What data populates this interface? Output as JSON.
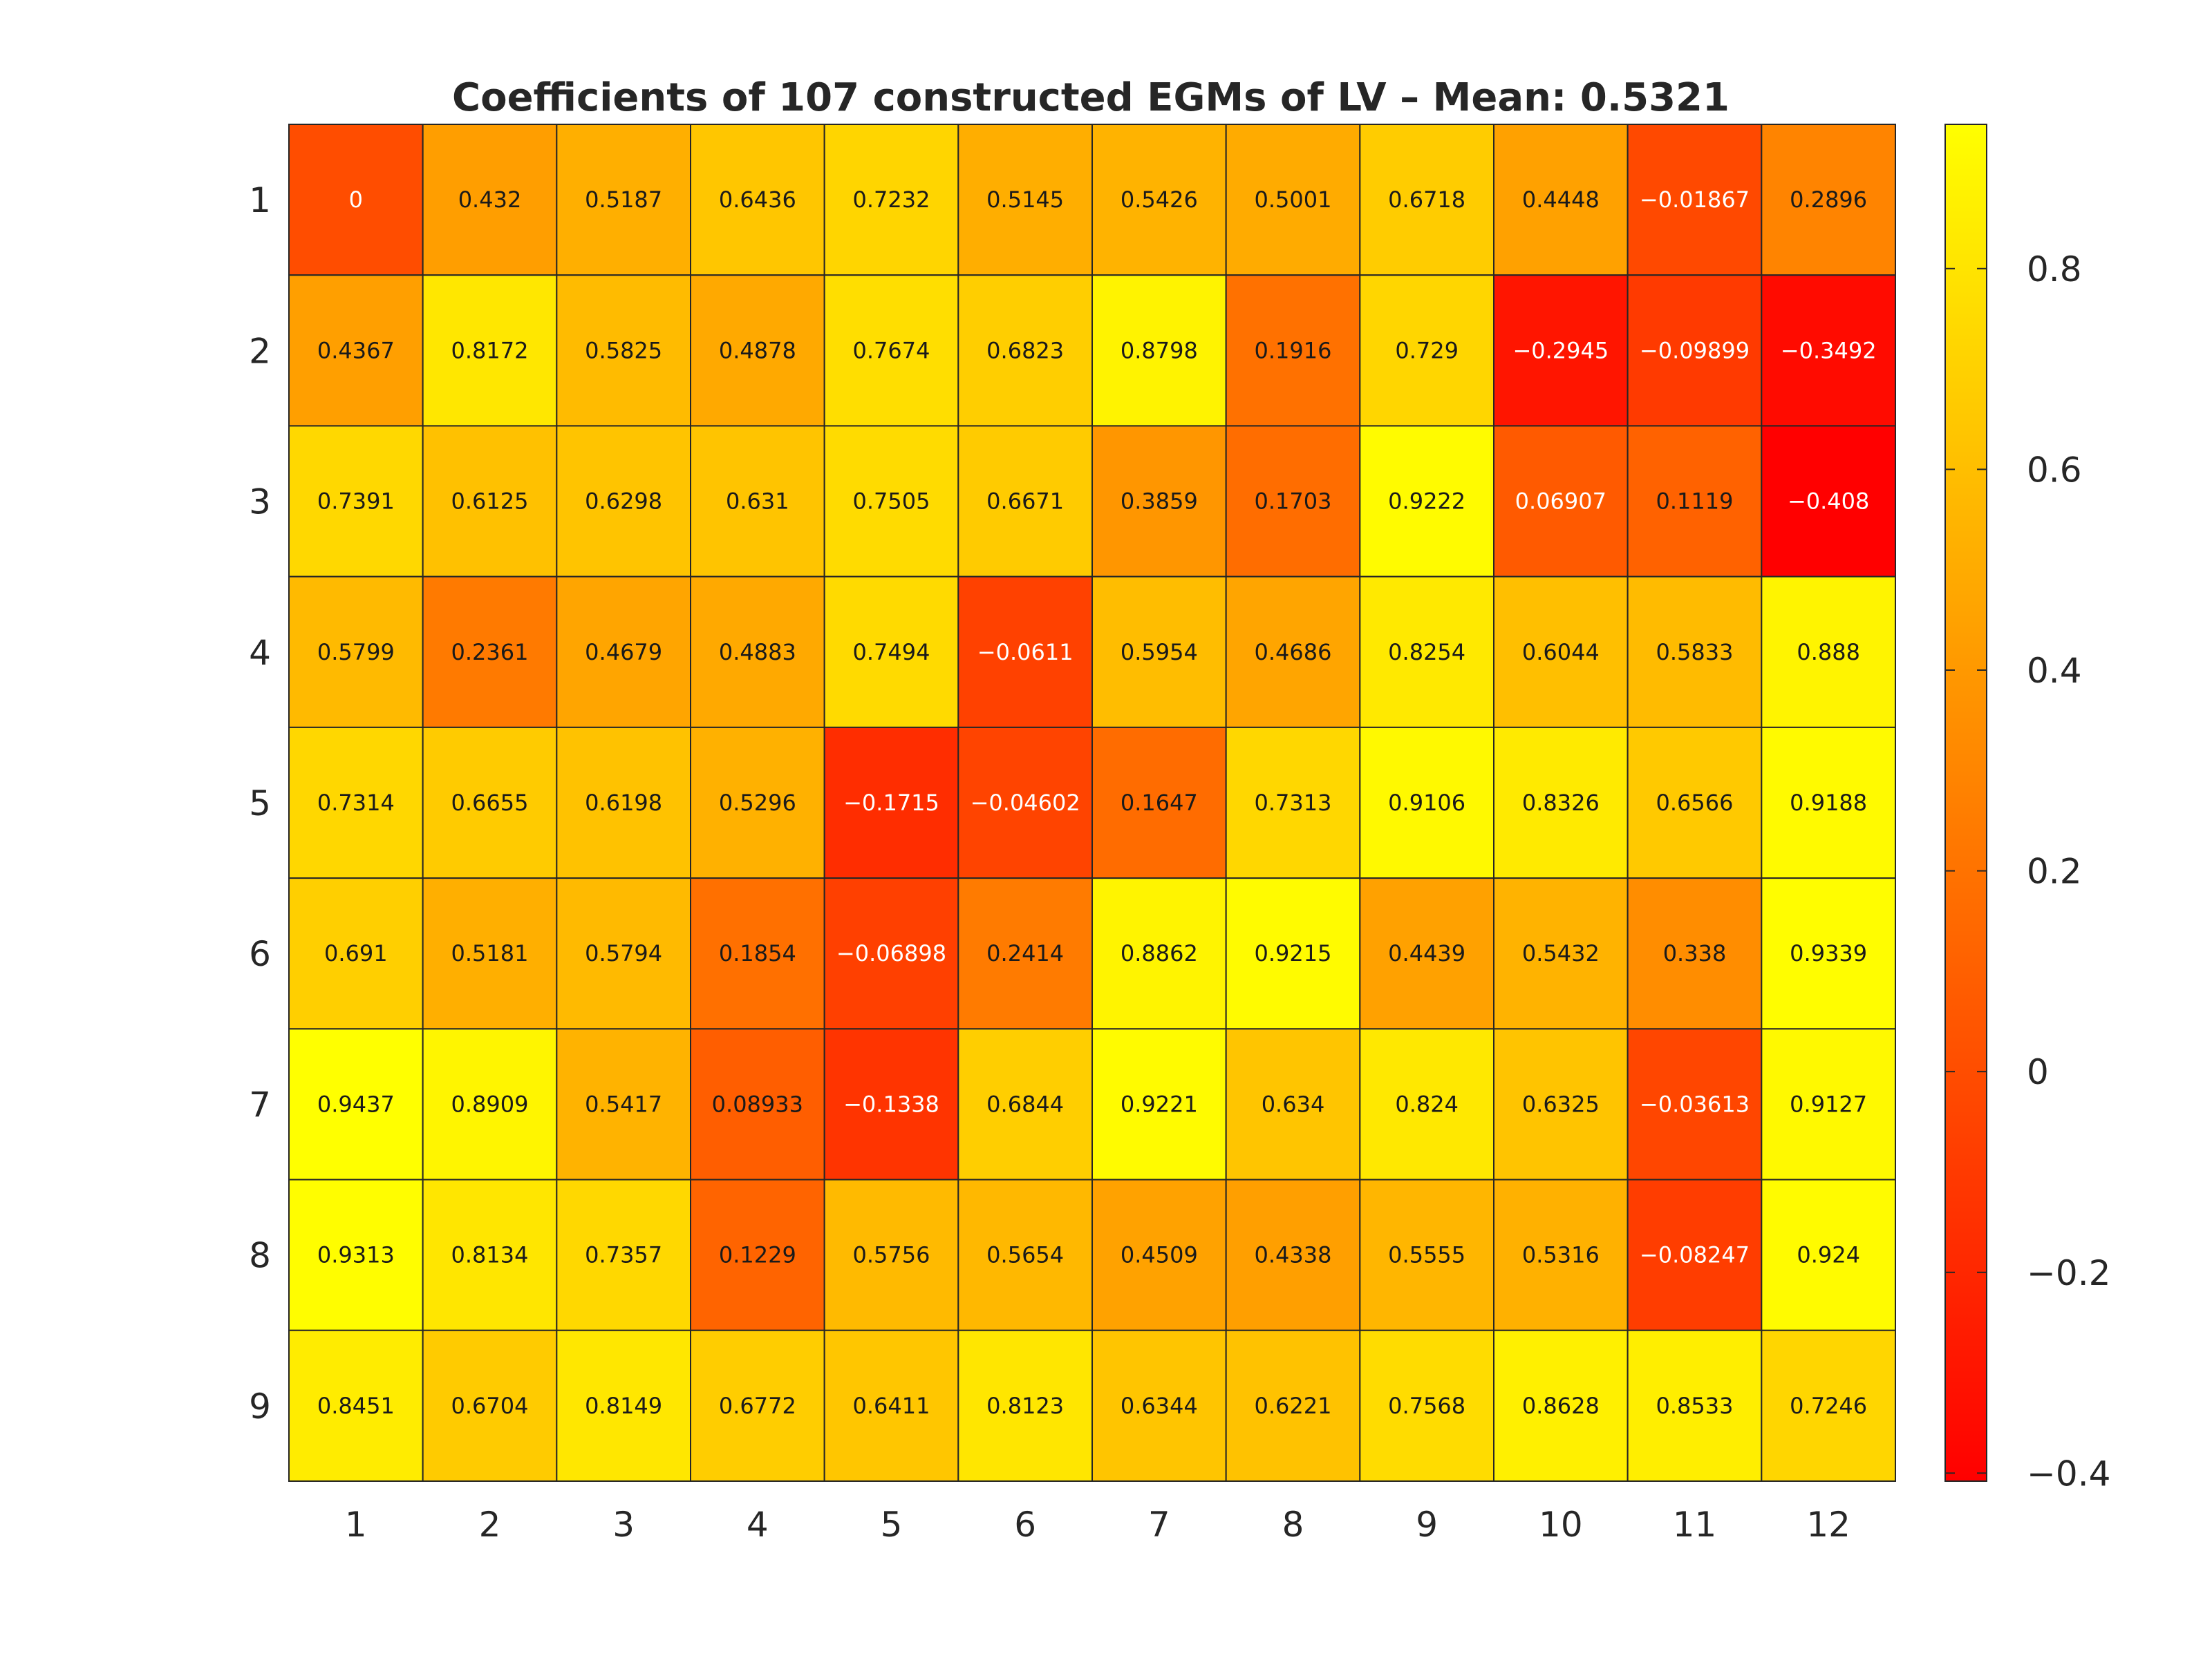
{
  "chart_data": {
    "type": "heatmap",
    "title": "Coefficients of 107 constructed EGMs of LV – Mean: 0.5321",
    "x_tick_labels": [
      "1",
      "2",
      "3",
      "4",
      "5",
      "6",
      "7",
      "8",
      "9",
      "10",
      "11",
      "12"
    ],
    "y_tick_labels": [
      "1",
      "2",
      "3",
      "4",
      "5",
      "6",
      "7",
      "8",
      "9"
    ],
    "values": [
      [
        "0",
        "0.432",
        "0.5187",
        "0.6436",
        "0.7232",
        "0.5145",
        "0.5426",
        "0.5001",
        "0.6718",
        "0.4448",
        "−0.01867",
        "0.2896"
      ],
      [
        "0.4367",
        "0.8172",
        "0.5825",
        "0.4878",
        "0.7674",
        "0.6823",
        "0.8798",
        "0.1916",
        "0.729",
        "−0.2945",
        "−0.09899",
        "−0.3492"
      ],
      [
        "0.7391",
        "0.6125",
        "0.6298",
        "0.631",
        "0.7505",
        "0.6671",
        "0.3859",
        "0.1703",
        "0.9222",
        "0.06907",
        "0.1119",
        "−0.408"
      ],
      [
        "0.5799",
        "0.2361",
        "0.4679",
        "0.4883",
        "0.7494",
        "−0.0611",
        "0.5954",
        "0.4686",
        "0.8254",
        "0.6044",
        "0.5833",
        "0.888"
      ],
      [
        "0.7314",
        "0.6655",
        "0.6198",
        "0.5296",
        "−0.1715",
        "−0.04602",
        "0.1647",
        "0.7313",
        "0.9106",
        "0.8326",
        "0.6566",
        "0.9188"
      ],
      [
        "0.691",
        "0.5181",
        "0.5794",
        "0.1854",
        "−0.06898",
        "0.2414",
        "0.8862",
        "0.9215",
        "0.4439",
        "0.5432",
        "0.338",
        "0.9339"
      ],
      [
        "0.9437",
        "0.8909",
        "0.5417",
        "0.08933",
        "−0.1338",
        "0.6844",
        "0.9221",
        "0.634",
        "0.824",
        "0.6325",
        "−0.03613",
        "0.9127"
      ],
      [
        "0.9313",
        "0.8134",
        "0.7357",
        "0.1229",
        "0.5756",
        "0.5654",
        "0.4509",
        "0.4338",
        "0.5555",
        "0.5316",
        "−0.08247",
        "0.924"
      ],
      [
        "0.8451",
        "0.6704",
        "0.8149",
        "0.6772",
        "0.6411",
        "0.8123",
        "0.6344",
        "0.6221",
        "0.7568",
        "0.8628",
        "0.8533",
        "0.7246"
      ]
    ],
    "colorbar": {
      "colormap": "autumn",
      "range": [
        -0.408,
        0.9437
      ],
      "ticks": [
        -0.4,
        -0.2,
        0,
        0.2,
        0.4,
        0.6,
        0.8
      ],
      "tick_labels": [
        "−0.4",
        "−0.2",
        "0",
        "0.2",
        "0.4",
        "0.6",
        "0.8"
      ]
    },
    "colors": {
      "low": "#ff0000",
      "high": "#ffff00",
      "gridline": "#262626"
    }
  }
}
